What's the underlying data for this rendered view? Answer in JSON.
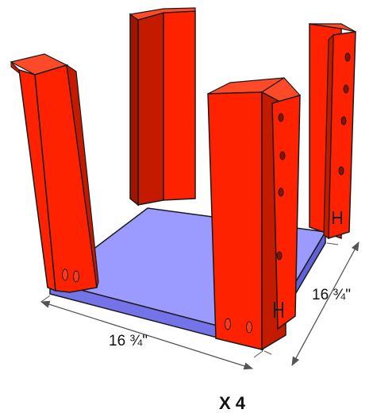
{
  "diagram": {
    "front_width_label": "16 ¾\"",
    "side_depth_label": "16 ¾\"",
    "quantity_label": "X 4"
  },
  "colors": {
    "board_face": "#ff2200",
    "board_edge": "#c41a00",
    "board_dark": "#a01400",
    "base_top": "#9a9aff",
    "base_edge": "#7474e8",
    "outline": "#1a1a1a",
    "dimension_line": "#555555"
  }
}
